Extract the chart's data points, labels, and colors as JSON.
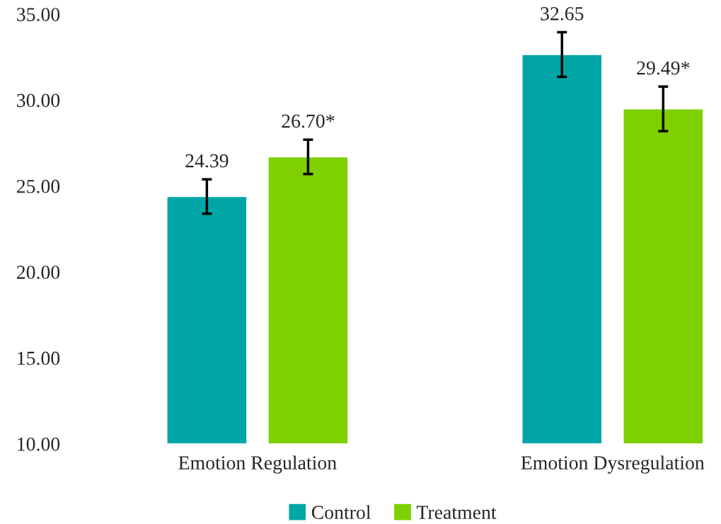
{
  "chart_data": {
    "type": "bar",
    "categories": [
      "Emotion Regulation",
      "Emotion Dysregulation"
    ],
    "series": [
      {
        "name": "Control",
        "color": "#00a6a6",
        "values": [
          24.39,
          32.65
        ],
        "errors": [
          1.0,
          1.3
        ],
        "value_labels": [
          "24.39",
          "32.65"
        ]
      },
      {
        "name": "Treatment",
        "color": "#7ed000",
        "values": [
          26.7,
          29.49
        ],
        "errors": [
          1.0,
          1.3
        ],
        "value_labels": [
          "26.70*",
          "29.49*"
        ]
      }
    ],
    "ylim": [
      10,
      35
    ],
    "yticks": [
      {
        "value": 10,
        "label": "10.00"
      },
      {
        "value": 15,
        "label": "15.00"
      },
      {
        "value": 20,
        "label": "20.00"
      },
      {
        "value": 25,
        "label": "25.00"
      },
      {
        "value": 30,
        "label": "30.00"
      },
      {
        "value": 35,
        "label": "35.00"
      }
    ],
    "grid": false,
    "legend": "bottom"
  }
}
